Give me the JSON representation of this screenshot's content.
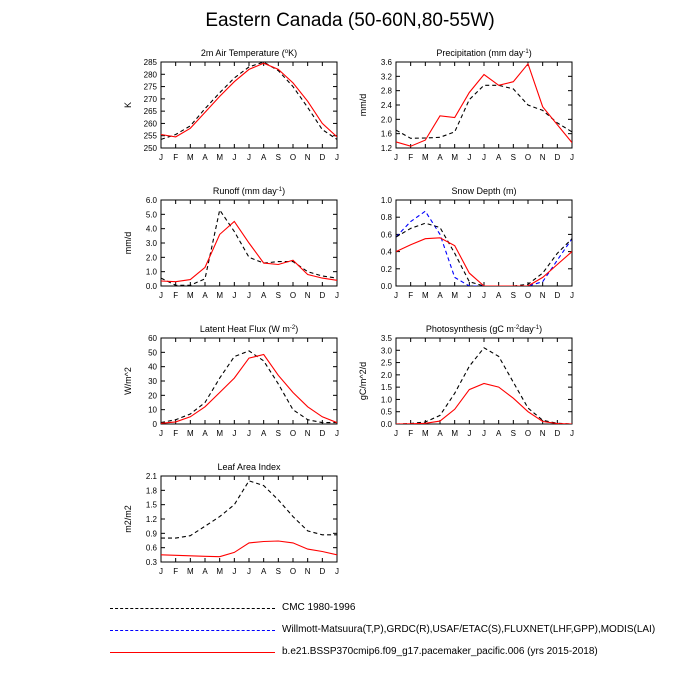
{
  "title": "Eastern Canada (50-60N,80-55W)",
  "colors": {
    "obs_cmc": "#000000",
    "obs_willmott": "#0000ff",
    "model": "#ff0000"
  },
  "legend": [
    {
      "label": "CMC 1980-1996",
      "color": "#000000",
      "style": "dashed"
    },
    {
      "label": "Willmott-Matsuura(T,P),GRDC(R),USAF/ETAC(S),FLUXNET(LHF,GPP),MODIS(LAI)",
      "color": "#0000ff",
      "style": "dashed"
    },
    {
      "label": "b.e21.BSSP370cmip6.f09_g17.pacemaker_pacific.006 (yrs 2015-2018)",
      "color": "#ff0000",
      "style": "solid"
    }
  ],
  "chart_data": [
    {
      "type": "line",
      "title_parts": [
        "2m Air Temperature (",
        "o",
        "K)"
      ],
      "ylabel": "K",
      "categories": [
        "J",
        "F",
        "M",
        "A",
        "M",
        "J",
        "J",
        "A",
        "S",
        "O",
        "N",
        "D",
        "J"
      ],
      "ylim": [
        250,
        285
      ],
      "yticks": [
        250,
        255,
        260,
        265,
        270,
        275,
        280,
        285
      ],
      "yfmt": 0,
      "series": [
        {
          "color": "#000000",
          "dash": "dashed",
          "values": [
            253.5,
            255.5,
            259,
            266,
            272.5,
            278.5,
            283,
            285,
            281.5,
            275,
            266.5,
            257.5,
            253.5
          ]
        },
        {
          "color": "#ff0000",
          "dash": "solid",
          "values": [
            255.5,
            254.5,
            258,
            264.5,
            271,
            277,
            282,
            284.5,
            282,
            276.5,
            269,
            260,
            254.5
          ]
        }
      ]
    },
    {
      "type": "line",
      "title_parts": [
        "Precipitation (mm day",
        "-1",
        ")"
      ],
      "ylabel": "mm/d",
      "categories": [
        "J",
        "F",
        "M",
        "A",
        "M",
        "J",
        "J",
        "A",
        "S",
        "O",
        "N",
        "D",
        "J"
      ],
      "ylim": [
        1.2,
        3.6
      ],
      "yticks": [
        1.2,
        1.6,
        2.0,
        2.4,
        2.8,
        3.2,
        3.6
      ],
      "yfmt": 1,
      "series": [
        {
          "color": "#000000",
          "dash": "dashed",
          "values": [
            1.7,
            1.47,
            1.48,
            1.5,
            1.65,
            2.55,
            2.95,
            2.95,
            2.85,
            2.4,
            2.25,
            1.9,
            1.65
          ]
        },
        {
          "color": "#ff0000",
          "dash": "solid",
          "values": [
            1.37,
            1.25,
            1.42,
            2.1,
            2.05,
            2.75,
            3.25,
            2.95,
            3.05,
            3.55,
            2.35,
            1.85,
            1.35
          ]
        }
      ]
    },
    {
      "type": "line",
      "title_parts": [
        "Runoff (mm day",
        "-1",
        ")"
      ],
      "ylabel": "mm/d",
      "categories": [
        "J",
        "F",
        "M",
        "A",
        "M",
        "J",
        "J",
        "A",
        "S",
        "O",
        "N",
        "D",
        "J"
      ],
      "ylim": [
        0.0,
        6.0
      ],
      "yticks": [
        0.0,
        1.0,
        2.0,
        3.0,
        4.0,
        5.0,
        6.0
      ],
      "yfmt": 1,
      "series": [
        {
          "color": "#000000",
          "dash": "dashed",
          "values": [
            0.55,
            0.05,
            0.05,
            0.5,
            5.3,
            3.8,
            2.0,
            1.6,
            1.7,
            1.7,
            1.0,
            0.7,
            0.55
          ]
        },
        {
          "color": "#ff0000",
          "dash": "solid",
          "values": [
            0.35,
            0.3,
            0.45,
            1.3,
            3.6,
            4.5,
            3.0,
            1.6,
            1.5,
            1.8,
            0.8,
            0.55,
            0.4
          ]
        }
      ]
    },
    {
      "type": "line",
      "title_parts": [
        "Snow Depth (m)"
      ],
      "ylabel": "",
      "categories": [
        "J",
        "F",
        "M",
        "A",
        "M",
        "J",
        "J",
        "A",
        "S",
        "O",
        "N",
        "D",
        "J"
      ],
      "ylim": [
        0.0,
        1.0
      ],
      "yticks": [
        0.0,
        0.2,
        0.4,
        0.6,
        0.8,
        1.0
      ],
      "yfmt": 1,
      "series": [
        {
          "color": "#0000ff",
          "dash": "dashed",
          "values": [
            0.57,
            0.75,
            0.87,
            0.6,
            0.1,
            0.0,
            0.0,
            0.0,
            0.0,
            0.0,
            0.05,
            0.3,
            0.55
          ]
        },
        {
          "color": "#000000",
          "dash": "dashed",
          "values": [
            0.57,
            0.67,
            0.73,
            0.68,
            0.38,
            0.05,
            0.0,
            0.0,
            0.0,
            0.02,
            0.15,
            0.38,
            0.55
          ]
        },
        {
          "color": "#ff0000",
          "dash": "solid",
          "values": [
            0.4,
            0.48,
            0.55,
            0.56,
            0.47,
            0.15,
            0.0,
            0.0,
            0.0,
            0.0,
            0.1,
            0.25,
            0.4
          ]
        }
      ]
    },
    {
      "type": "line",
      "title_parts": [
        "Latent Heat Flux (W m",
        "-2",
        ")"
      ],
      "ylabel": "W/m^2",
      "categories": [
        "J",
        "F",
        "M",
        "A",
        "M",
        "J",
        "J",
        "A",
        "S",
        "O",
        "N",
        "D",
        "J"
      ],
      "ylim": [
        0,
        60
      ],
      "yticks": [
        0,
        10,
        20,
        30,
        40,
        50,
        60
      ],
      "yfmt": 0,
      "series": [
        {
          "color": "#000000",
          "dash": "dashed",
          "values": [
            1,
            3,
            7,
            15,
            32,
            47,
            51,
            44,
            28,
            10,
            3,
            1,
            1
          ]
        },
        {
          "color": "#ff0000",
          "dash": "solid",
          "values": [
            0.5,
            1.5,
            5,
            12,
            22,
            32,
            46,
            48.5,
            34,
            22,
            12,
            5,
            1
          ]
        }
      ]
    },
    {
      "type": "line",
      "title_parts": [
        "Photosynthesis (gC m",
        "-2",
        "day",
        "-1",
        ")"
      ],
      "ylabel": "gC/m^2/d",
      "categories": [
        "J",
        "F",
        "M",
        "A",
        "M",
        "J",
        "J",
        "A",
        "S",
        "O",
        "N",
        "D",
        "J"
      ],
      "ylim": [
        0.0,
        3.5
      ],
      "yticks": [
        0.0,
        0.5,
        1.0,
        1.5,
        2.0,
        2.5,
        3.0,
        3.5
      ],
      "yfmt": 1,
      "series": [
        {
          "color": "#000000",
          "dash": "dashed",
          "values": [
            0.0,
            0.02,
            0.08,
            0.35,
            1.25,
            2.35,
            3.1,
            2.75,
            1.7,
            0.65,
            0.15,
            0.03,
            0.0
          ]
        },
        {
          "color": "#ff0000",
          "dash": "solid",
          "values": [
            0.0,
            0.01,
            0.03,
            0.12,
            0.6,
            1.4,
            1.65,
            1.5,
            1.05,
            0.5,
            0.1,
            0.02,
            0.0
          ]
        }
      ]
    },
    {
      "type": "line",
      "title_parts": [
        "Leaf Area Index"
      ],
      "ylabel": "m2/m2",
      "categories": [
        "J",
        "F",
        "M",
        "A",
        "M",
        "J",
        "J",
        "A",
        "S",
        "O",
        "N",
        "D",
        "J"
      ],
      "ylim": [
        0.3,
        2.1
      ],
      "yticks": [
        0.3,
        0.6,
        0.9,
        1.2,
        1.5,
        1.8,
        2.1
      ],
      "yfmt": 1,
      "series": [
        {
          "color": "#000000",
          "dash": "dashed",
          "values": [
            0.8,
            0.8,
            0.85,
            1.05,
            1.25,
            1.5,
            2.0,
            1.9,
            1.6,
            1.25,
            0.95,
            0.87,
            0.87
          ]
        },
        {
          "color": "#ff0000",
          "dash": "solid",
          "values": [
            0.45,
            0.44,
            0.43,
            0.42,
            0.41,
            0.5,
            0.7,
            0.73,
            0.74,
            0.7,
            0.57,
            0.52,
            0.45
          ]
        }
      ]
    }
  ]
}
